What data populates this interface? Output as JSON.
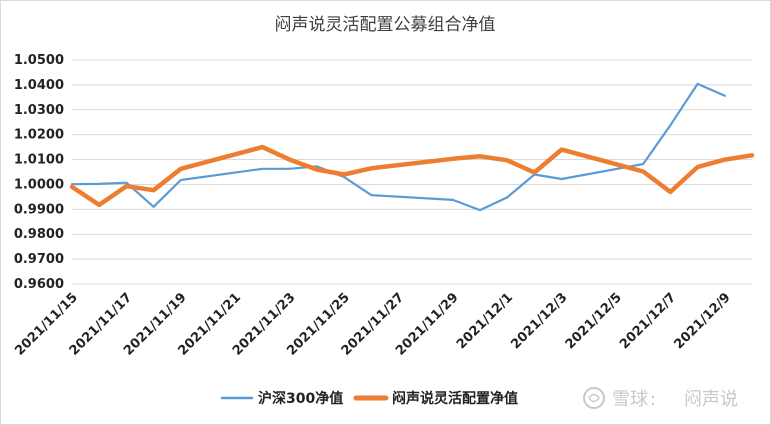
{
  "chart_data": {
    "type": "line",
    "title": "闷声说灵活配置公募组合净值",
    "xlabel": "",
    "ylabel": "",
    "ylim": [
      0.96,
      1.05
    ],
    "y_ticks": [
      "1.0500",
      "1.0400",
      "1.0300",
      "1.0200",
      "1.0100",
      "1.0000",
      "0.9900",
      "0.9800",
      "0.9700",
      "0.9600"
    ],
    "x": [
      "2021/11/15",
      "2021/11/16",
      "2021/11/17",
      "2021/11/18",
      "2021/11/19",
      "2021/11/22",
      "2021/11/23",
      "2021/11/24",
      "2021/11/25",
      "2021/11/26",
      "2021/11/29",
      "2021/11/30",
      "2021/12/1",
      "2021/12/2",
      "2021/12/3",
      "2021/12/6",
      "2021/12/7",
      "2021/12/8",
      "2021/12/9",
      "2021/12/10"
    ],
    "x_tick_labels": [
      "2021/11/15",
      "2021/11/17",
      "2021/11/19",
      "2021/11/21",
      "2021/11/23",
      "2021/11/25",
      "2021/11/27",
      "2021/11/29",
      "2021/12/1",
      "2021/12/3",
      "2021/12/5",
      "2021/12/7",
      "2021/12/9"
    ],
    "grid": true,
    "legend_position": "bottom",
    "series": [
      {
        "name": "沪深300净值",
        "color": "#5b9bd5",
        "values": [
          1.0001,
          1.0002,
          1.0007,
          0.991,
          1.0018,
          1.0063,
          1.0063,
          1.0073,
          1.003,
          0.9957,
          0.9938,
          0.9897,
          0.9948,
          1.004,
          1.0022,
          1.0082,
          1.0238,
          1.0404,
          1.0356,
          null
        ]
      },
      {
        "name": "闷声说灵活配置净值",
        "color": "#ed7d31",
        "values": [
          0.999,
          0.9918,
          0.9993,
          0.9977,
          1.0063,
          1.015,
          1.01,
          1.006,
          1.004,
          1.0065,
          1.0103,
          1.0113,
          1.0097,
          1.0048,
          1.014,
          1.0052,
          0.997,
          1.007,
          1.01,
          1.0117
        ]
      }
    ]
  },
  "watermark": {
    "brand": "雪球",
    "separator": ":",
    "author": "闷声说"
  }
}
